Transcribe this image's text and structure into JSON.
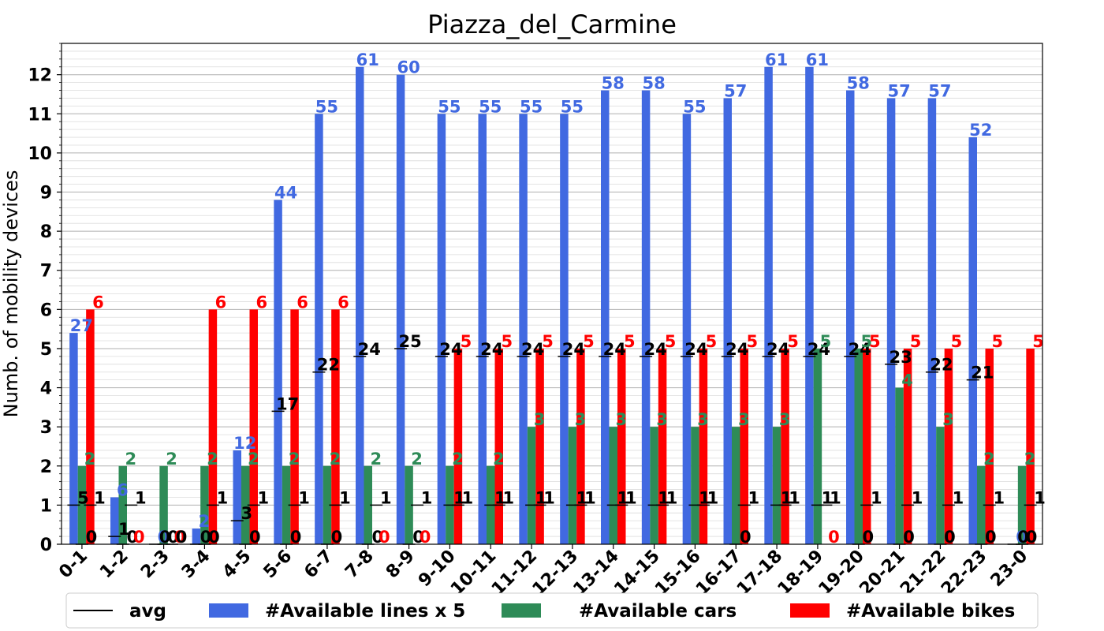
{
  "chart_data": {
    "type": "bar",
    "title": "Piazza_del_Carmine",
    "ylabel": "Numb. of mobility devices",
    "ylim": [
      0,
      12.8
    ],
    "yticks": [
      0,
      1,
      2,
      3,
      4,
      5,
      6,
      7,
      8,
      9,
      10,
      11,
      12
    ],
    "grid": true,
    "legend_position": "bottom",
    "categories": [
      "0-1",
      "1-2",
      "2-3",
      "3-4",
      "4-5",
      "5-6",
      "6-7",
      "7-8",
      "8-9",
      "9-10",
      "10-11",
      "11-12",
      "12-13",
      "13-14",
      "14-15",
      "15-16",
      "16-17",
      "17-18",
      "18-19",
      "19-20",
      "20-21",
      "21-22",
      "22-23",
      "23-0"
    ],
    "series": [
      {
        "name": "#Available lines x 5",
        "color": "#4169e1",
        "values": [
          5.4,
          1.2,
          0,
          0.4,
          2.4,
          8.8,
          11,
          12.2,
          12,
          11,
          11,
          11,
          11,
          11.6,
          11.6,
          11,
          11.4,
          12.2,
          12.2,
          11.6,
          11.4,
          11.4,
          10.4,
          0
        ],
        "labels": [
          "27",
          "6",
          "0",
          "2",
          "12",
          "44",
          "55",
          "61",
          "60",
          "55",
          "55",
          "55",
          "55",
          "58",
          "58",
          "55",
          "57",
          "61",
          "61",
          "58",
          "57",
          "57",
          "52",
          "0"
        ],
        "avg": [
          5,
          1,
          0,
          0,
          3,
          17,
          22,
          24,
          25,
          24,
          24,
          24,
          24,
          24,
          24,
          24,
          24,
          24,
          24,
          24,
          23,
          22,
          21,
          0
        ]
      },
      {
        "name": "#Available cars",
        "color": "#2e8b57",
        "values": [
          2,
          2,
          2,
          2,
          2,
          2,
          2,
          2,
          2,
          2,
          2,
          3,
          3,
          3,
          3,
          3,
          3,
          3,
          5,
          5,
          4,
          3,
          2,
          2
        ],
        "avg": [
          0,
          0,
          0,
          0,
          0,
          0,
          0,
          0,
          0,
          1,
          1,
          1,
          1,
          1,
          1,
          1,
          0,
          1,
          1,
          0,
          0,
          0,
          0,
          0
        ]
      },
      {
        "name": "#Available bikes",
        "color": "#ff0000",
        "values": [
          6,
          0,
          0,
          6,
          6,
          6,
          6,
          0,
          0,
          5,
          5,
          5,
          5,
          5,
          5,
          5,
          5,
          5,
          0,
          5,
          5,
          5,
          5,
          5
        ],
        "avg": [
          1,
          1,
          0,
          1,
          1,
          1,
          1,
          1,
          1,
          1,
          1,
          1,
          1,
          1,
          1,
          1,
          1,
          1,
          1,
          1,
          1,
          1,
          1,
          1
        ]
      }
    ],
    "avg_legend": "avg"
  }
}
